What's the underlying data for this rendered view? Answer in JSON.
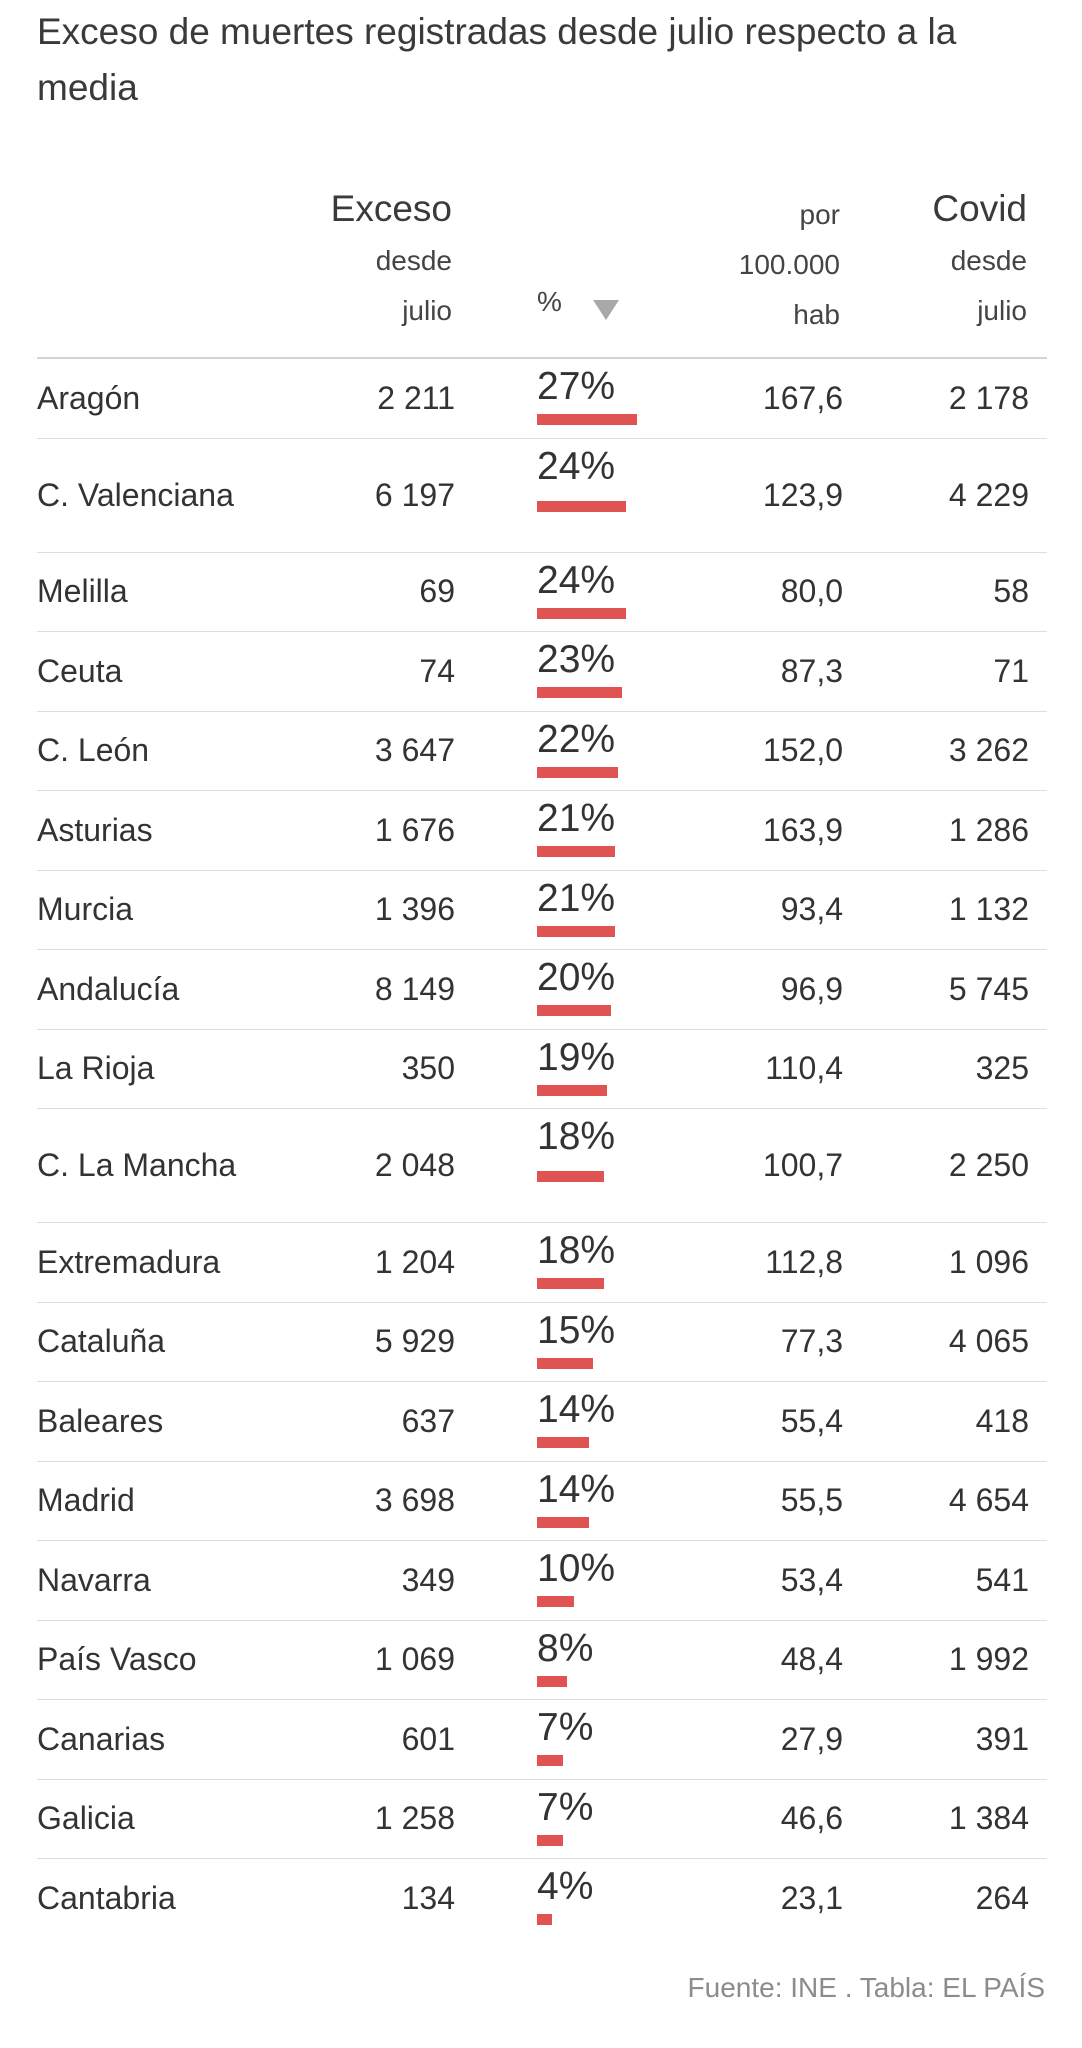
{
  "title": "Exceso de muertes registradas desde julio respecto a la media",
  "columns": {
    "exceso": [
      "Exceso",
      "desde",
      "julio"
    ],
    "pct": "%",
    "hab": [
      "por",
      "100.000",
      "hab"
    ],
    "covid": [
      "Covid",
      "desde",
      "julio"
    ]
  },
  "sort_icon": "triangle-down-icon",
  "bar_color": "#e05353",
  "chart_data": {
    "type": "table",
    "title": "Exceso de muertes registradas desde julio respecto a la media",
    "rows": [
      {
        "region": "Aragón",
        "exceso": "2 211",
        "pct_label": "27%",
        "pct": 27,
        "hab": "167,6",
        "covid": "2 178"
      },
      {
        "region": "C. Valenciana",
        "exceso": "6 197",
        "pct_label": "24%",
        "pct": 24,
        "hab": "123,9",
        "covid": "4 229"
      },
      {
        "region": "Melilla",
        "exceso": "69",
        "pct_label": "24%",
        "pct": 24,
        "hab": "80,0",
        "covid": "58"
      },
      {
        "region": "Ceuta",
        "exceso": "74",
        "pct_label": "23%",
        "pct": 23,
        "hab": "87,3",
        "covid": "71"
      },
      {
        "region": "C. León",
        "exceso": "3 647",
        "pct_label": "22%",
        "pct": 22,
        "hab": "152,0",
        "covid": "3 262"
      },
      {
        "region": "Asturias",
        "exceso": "1 676",
        "pct_label": "21%",
        "pct": 21,
        "hab": "163,9",
        "covid": "1 286"
      },
      {
        "region": "Murcia",
        "exceso": "1 396",
        "pct_label": "21%",
        "pct": 21,
        "hab": "93,4",
        "covid": "1 132"
      },
      {
        "region": "Andalucía",
        "exceso": "8 149",
        "pct_label": "20%",
        "pct": 20,
        "hab": "96,9",
        "covid": "5 745"
      },
      {
        "region": "La Rioja",
        "exceso": "350",
        "pct_label": "19%",
        "pct": 19,
        "hab": "110,4",
        "covid": "325"
      },
      {
        "region": "C. La Mancha",
        "exceso": "2 048",
        "pct_label": "18%",
        "pct": 18,
        "hab": "100,7",
        "covid": "2 250"
      },
      {
        "region": "Extremadura",
        "exceso": "1 204",
        "pct_label": "18%",
        "pct": 18,
        "hab": "112,8",
        "covid": "1 096"
      },
      {
        "region": "Cataluña",
        "exceso": "5 929",
        "pct_label": "15%",
        "pct": 15,
        "hab": "77,3",
        "covid": "4 065"
      },
      {
        "region": "Baleares",
        "exceso": "637",
        "pct_label": "14%",
        "pct": 14,
        "hab": "55,4",
        "covid": "418"
      },
      {
        "region": "Madrid",
        "exceso": "3 698",
        "pct_label": "14%",
        "pct": 14,
        "hab": "55,5",
        "covid": "4 654"
      },
      {
        "region": "Navarra",
        "exceso": "349",
        "pct_label": "10%",
        "pct": 10,
        "hab": "53,4",
        "covid": "541"
      },
      {
        "region": "País Vasco",
        "exceso": "1 069",
        "pct_label": "8%",
        "pct": 8,
        "hab": "48,4",
        "covid": "1 992"
      },
      {
        "region": "Canarias",
        "exceso": "601",
        "pct_label": "7%",
        "pct": 7,
        "hab": "27,9",
        "covid": "391"
      },
      {
        "region": "Galicia",
        "exceso": "1 258",
        "pct_label": "7%",
        "pct": 7,
        "hab": "46,6",
        "covid": "1 384"
      },
      {
        "region": "Cantabria",
        "exceso": "134",
        "pct_label": "4%",
        "pct": 4,
        "hab": "23,1",
        "covid": "264"
      }
    ]
  },
  "source": "Fuente: INE . Tabla: EL PAÍS"
}
